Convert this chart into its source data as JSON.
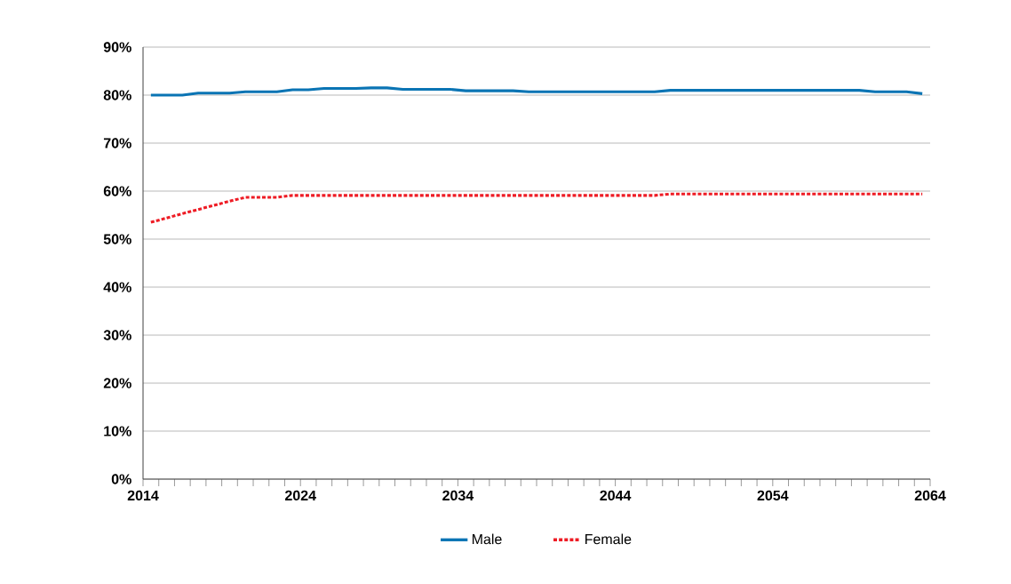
{
  "chart_data": {
    "type": "line",
    "xlim": [
      2014,
      2064
    ],
    "xticks": [
      2014,
      2024,
      2034,
      2044,
      2054,
      2064
    ],
    "ylim": [
      0,
      90
    ],
    "yticks": [
      {
        "value": 0,
        "label": "0%"
      },
      {
        "value": 10,
        "label": "10%"
      },
      {
        "value": 20,
        "label": "20%"
      },
      {
        "value": 30,
        "label": "30%"
      },
      {
        "value": 40,
        "label": "40%"
      },
      {
        "value": 50,
        "label": "50%"
      },
      {
        "value": 60,
        "label": "60%"
      },
      {
        "value": 70,
        "label": "70%"
      },
      {
        "value": 80,
        "label": "80%"
      },
      {
        "value": 90,
        "label": "90%"
      }
    ],
    "grid": "y",
    "legend": "bottom",
    "marker": "none",
    "series": [
      {
        "name": "Male",
        "color": "#0a74b4",
        "line_style": "solid",
        "x": [
          2014.5,
          2016.5,
          2017.5,
          2019.5,
          2020.5,
          2022.5,
          2023.5,
          2024.5,
          2025.5,
          2027.5,
          2028.5,
          2029.5,
          2030.5,
          2033.5,
          2034.5,
          2037.5,
          2038.5,
          2046.5,
          2047.5,
          2059.5,
          2060.5,
          2062.5,
          2063.5
        ],
        "values": [
          80.0,
          80.0,
          80.4,
          80.4,
          80.7,
          80.7,
          81.1,
          81.1,
          81.4,
          81.4,
          81.5,
          81.5,
          81.2,
          81.2,
          80.9,
          80.9,
          80.7,
          80.7,
          81.0,
          81.0,
          80.7,
          80.7,
          80.3
        ]
      },
      {
        "name": "Female",
        "color": "#ee1c25",
        "line_style": "dashed",
        "x": [
          2014.5,
          2016.5,
          2019.5,
          2020.5,
          2022.5,
          2023.5,
          2046.5,
          2047.5,
          2063.5
        ],
        "values": [
          53.5,
          55.3,
          57.9,
          58.7,
          58.7,
          59.1,
          59.1,
          59.4,
          59.4
        ]
      }
    ]
  }
}
